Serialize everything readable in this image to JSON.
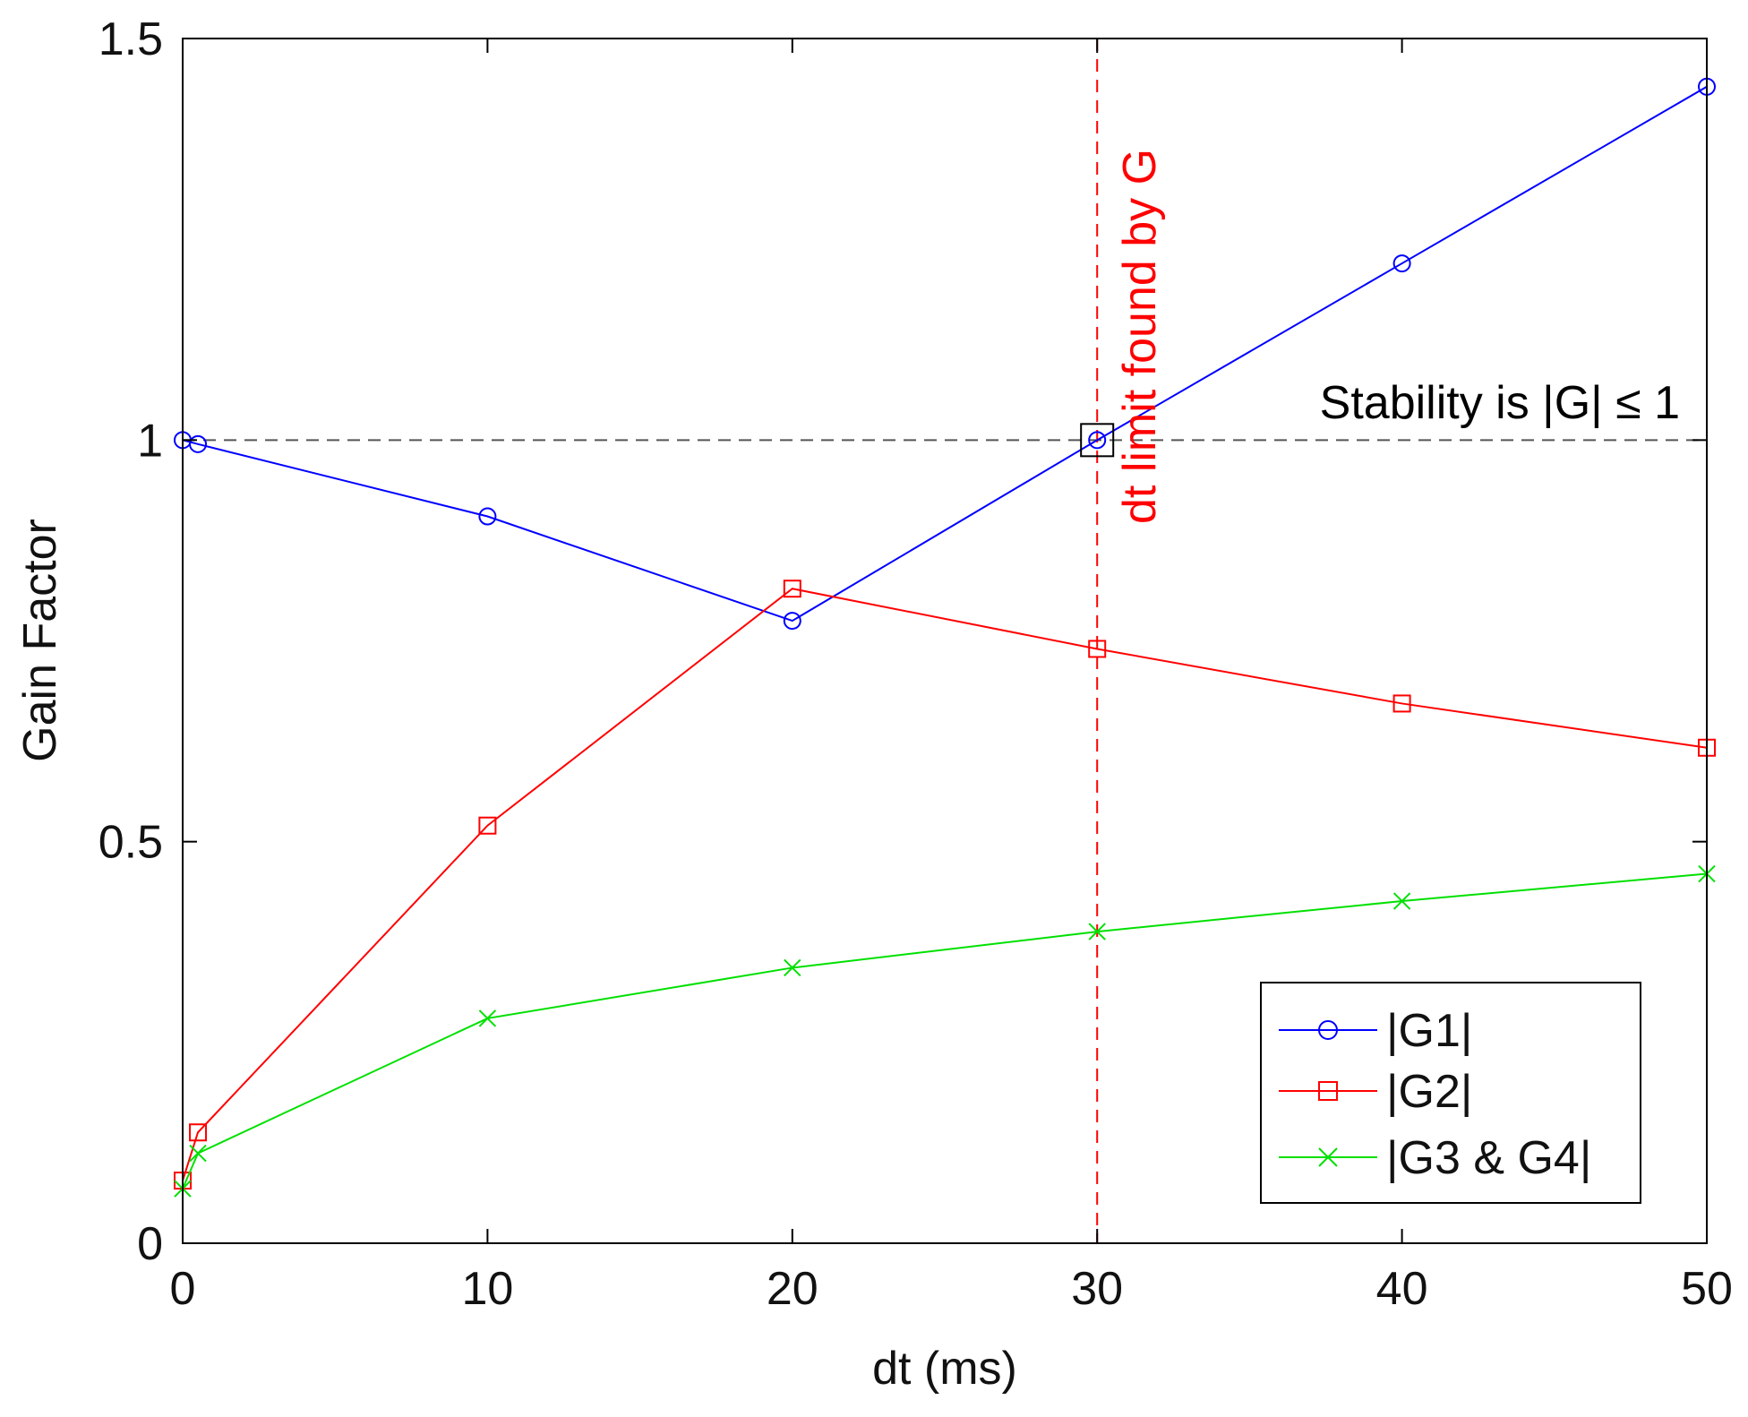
{
  "chart_data": {
    "type": "line",
    "xlabel": "dt (ms)",
    "ylabel": "Gain Factor",
    "xlim": [
      0,
      50
    ],
    "ylim": [
      0,
      1.5
    ],
    "xticks": [
      0,
      10,
      20,
      30,
      40,
      50
    ],
    "yticks": [
      0,
      0.5,
      1,
      1.5
    ],
    "xtick_labels": [
      "0",
      "10",
      "20",
      "30",
      "40",
      "50"
    ],
    "ytick_labels": [
      "0",
      "0.5",
      "1",
      "1.5"
    ],
    "grid": false,
    "legend_position": "bottom-right",
    "series": [
      {
        "name": "|G1|",
        "color": "#0000ff",
        "marker": "circle",
        "x": [
          0,
          0.5,
          10,
          20,
          30,
          40,
          50
        ],
        "y": [
          1.0,
          0.995,
          0.905,
          0.775,
          1.0,
          1.22,
          1.44
        ]
      },
      {
        "name": "|G2|",
        "color": "#ff0000",
        "marker": "square",
        "x": [
          0,
          0.5,
          10,
          20,
          30,
          40,
          50
        ],
        "y": [
          0.078,
          0.138,
          0.52,
          0.815,
          0.74,
          0.672,
          0.617
        ]
      },
      {
        "name": "|G3 & G4|",
        "color": "#00e000",
        "marker": "x",
        "x": [
          0,
          0.5,
          10,
          20,
          30,
          40,
          50
        ],
        "y": [
          0.068,
          0.112,
          0.28,
          0.343,
          0.388,
          0.426,
          0.46
        ]
      }
    ],
    "reference_lines": [
      {
        "orientation": "horizontal",
        "value": 1,
        "color": "#555555",
        "style": "dashed"
      },
      {
        "orientation": "vertical",
        "value": 30,
        "color": "#ff0000",
        "style": "dashed"
      }
    ],
    "highlight_marker": {
      "shape": "square",
      "x": 30,
      "y": 1,
      "color": "#000000"
    },
    "annotations": [
      {
        "text": "Stability is |G| ≤ 1",
        "color": "#000000",
        "anchor": "above dashed line y=1, right side"
      },
      {
        "text": "dt limit found by G",
        "color": "#ff0000",
        "anchor": "beside vertical line x=30, rotated"
      }
    ]
  }
}
